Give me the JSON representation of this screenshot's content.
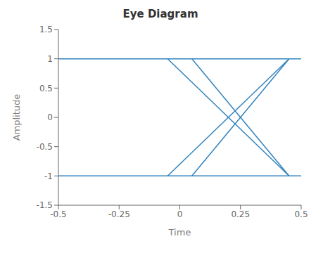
{
  "chart_data": {
    "type": "line",
    "title": "Eye Diagram",
    "xlabel": "Time",
    "ylabel": "Amplitude",
    "xlim": [
      -0.5,
      0.5
    ],
    "ylim": [
      -1.5,
      1.5
    ],
    "xticks": [
      -0.5,
      -0.25,
      0,
      0.25,
      0.5
    ],
    "yticks": [
      -1.5,
      -1,
      -0.5,
      0,
      0.5,
      1,
      1.5
    ],
    "grid": false,
    "series": [
      {
        "x": [
          -0.5,
          0.5
        ],
        "values": [
          1,
          1
        ]
      },
      {
        "x": [
          -0.5,
          0.5
        ],
        "values": [
          -1,
          -1
        ]
      },
      {
        "x": [
          -0.05,
          0.45
        ],
        "values": [
          1,
          -1
        ]
      },
      {
        "x": [
          -0.05,
          0.45
        ],
        "values": [
          -1,
          1
        ]
      },
      {
        "x": [
          0.05,
          0.45
        ],
        "values": [
          1,
          -1
        ]
      },
      {
        "x": [
          0.05,
          0.45
        ],
        "values": [
          -1,
          1
        ]
      }
    ]
  }
}
